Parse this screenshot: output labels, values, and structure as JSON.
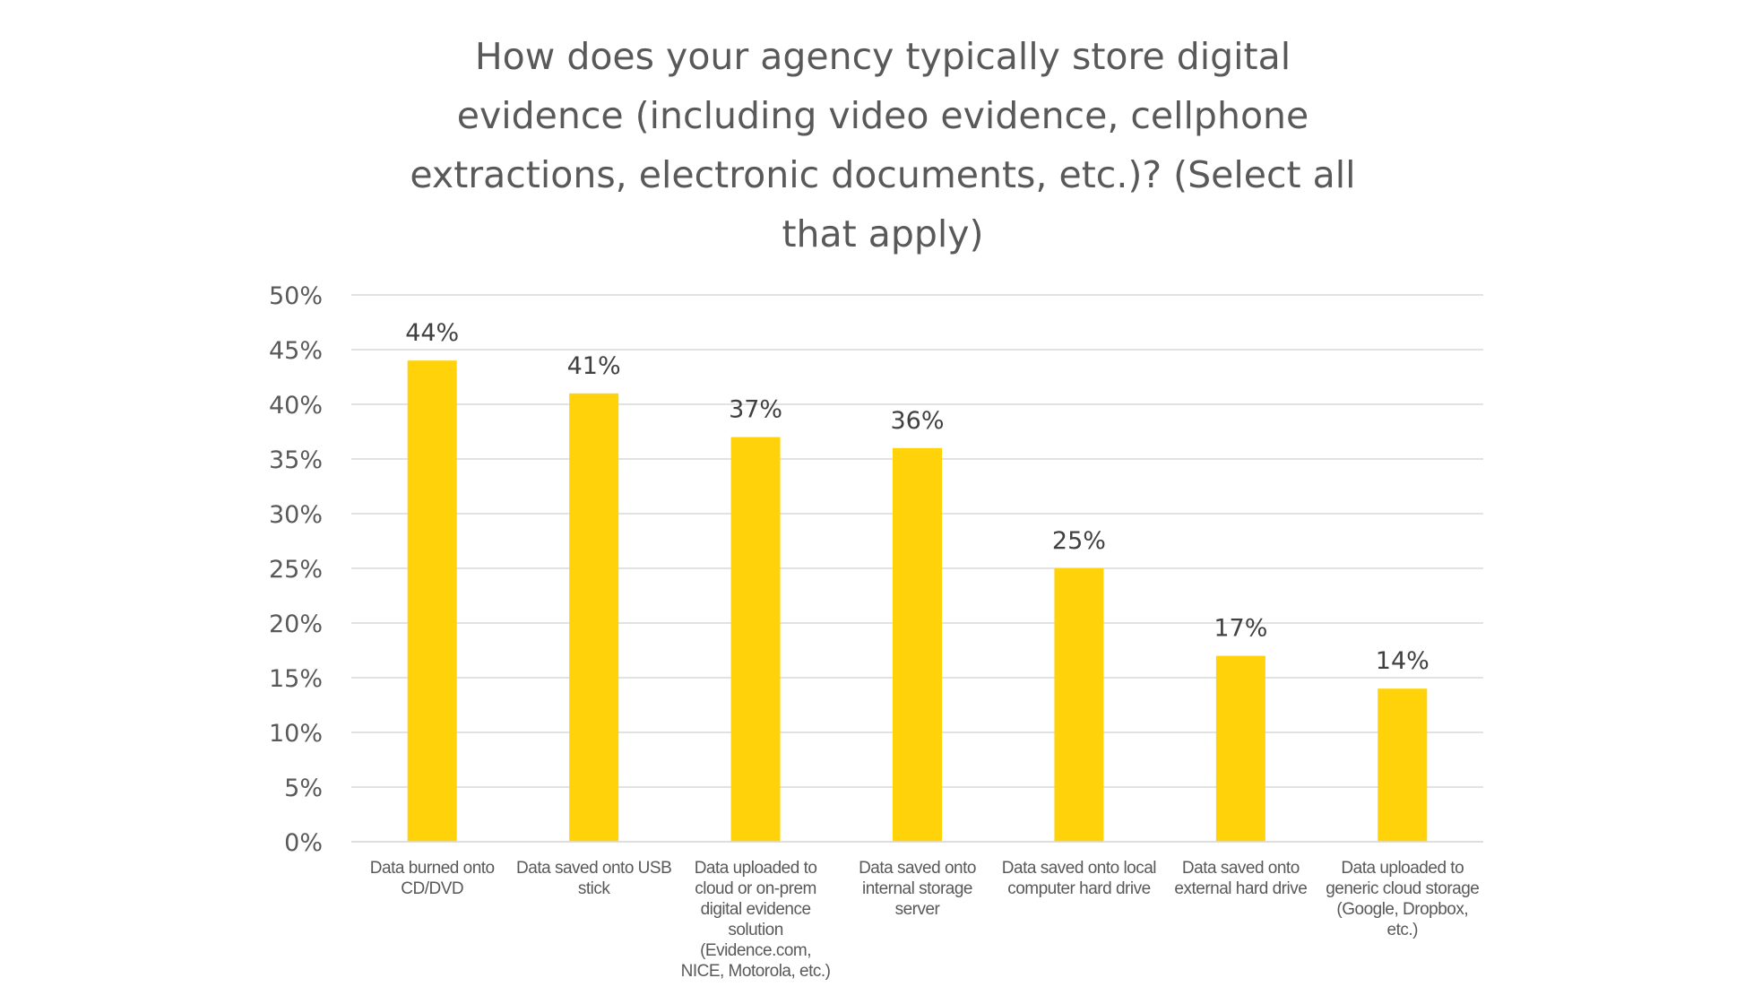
{
  "chart_data": {
    "type": "bar",
    "title": "How does your agency typically store digital evidence (including video evidence, cellphone extractions, electronic documents, etc.)? (Select all that apply)",
    "categories": [
      "Data burned onto CD/DVD",
      "Data saved onto USB stick",
      "Data uploaded to cloud or on-prem digital evidence solution (Evidence.com, NICE, Motorola, etc.)",
      "Data saved onto internal storage server",
      "Data saved onto local computer hard drive",
      "Data saved onto external hard drive",
      "Data uploaded to generic cloud storage (Google, Dropbox, etc.)"
    ],
    "values": [
      44,
      41,
      37,
      36,
      25,
      17,
      14
    ],
    "data_labels": [
      "44%",
      "41%",
      "37%",
      "36%",
      "25%",
      "17%",
      "14%"
    ],
    "yticks": [
      "0%",
      "5%",
      "10%",
      "15%",
      "20%",
      "25%",
      "30%",
      "35%",
      "40%",
      "45%",
      "50%"
    ],
    "ylim": [
      0,
      50
    ],
    "xlabel": "",
    "ylabel": "",
    "grid": "horizontal",
    "legend": "none",
    "bar_color": "#FFD20A"
  }
}
